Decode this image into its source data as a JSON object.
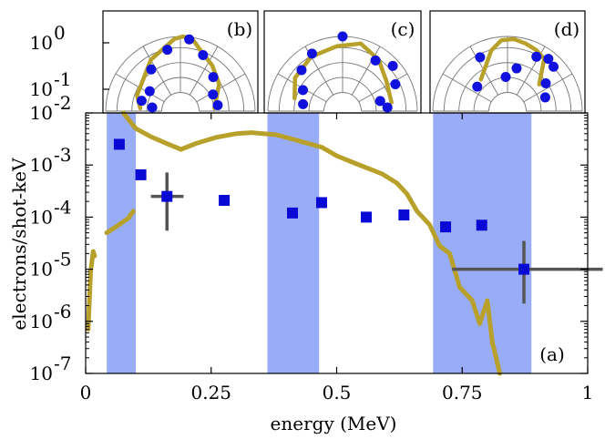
{
  "chart_data": {
    "type": "scatter",
    "xlabel": "energy (MeV)",
    "ylabel": "electrons/shot-keV",
    "xlim": [
      0,
      1
    ],
    "ylim_log10": [
      -7,
      -2
    ],
    "x_ticks": [
      {
        "value": 0,
        "label": "0"
      },
      {
        "value": 0.25,
        "label": "0.25"
      },
      {
        "value": 0.5,
        "label": "0.5"
      },
      {
        "value": 0.75,
        "label": "0.75"
      },
      {
        "value": 1,
        "label": "1"
      }
    ],
    "y_ticks": [
      {
        "exp": -2,
        "label": "10",
        "sup": "-2"
      },
      {
        "exp": -3,
        "label": "10",
        "sup": "-3"
      },
      {
        "exp": -4,
        "label": "10",
        "sup": "-4"
      },
      {
        "exp": -5,
        "label": "10",
        "sup": "-5"
      },
      {
        "exp": -6,
        "label": "10",
        "sup": "-6"
      },
      {
        "exp": -7,
        "label": "10",
        "sup": "-7"
      }
    ],
    "panel_label": "(a)",
    "shaded_bands": [
      [
        0.042,
        0.1
      ],
      [
        0.362,
        0.465
      ],
      [
        0.692,
        0.888
      ]
    ],
    "measured_points": [
      {
        "x": 0.067,
        "y": 0.0025
      },
      {
        "x": 0.11,
        "y": 0.00065
      },
      {
        "x": 0.162,
        "y": 0.00025
      },
      {
        "x": 0.276,
        "y": 0.00021
      },
      {
        "x": 0.412,
        "y": 0.00012
      },
      {
        "x": 0.47,
        "y": 0.00019
      },
      {
        "x": 0.559,
        "y": 0.0001
      },
      {
        "x": 0.634,
        "y": 0.00011
      },
      {
        "x": 0.717,
        "y": 6.5e-05
      },
      {
        "x": 0.789,
        "y": 7e-05
      },
      {
        "x": 0.873,
        "y": 1e-05
      }
    ],
    "error_bars": [
      {
        "x": 0.162,
        "y": 0.00025,
        "xerr": [
          0.13,
          0.195
        ],
        "yerr": [
          5.5e-05,
          0.00072
        ]
      },
      {
        "x": 0.873,
        "y": 1e-05,
        "xerr": [
          0.73,
          1.03
        ],
        "yerr": [
          2.2e-06,
          3.5e-05
        ]
      }
    ],
    "simulation_curves": [
      {
        "name": "simulation-low",
        "points": [
          [
            0.005,
            7e-07
          ],
          [
            0.01,
            9e-06
          ],
          [
            0.015,
            2.2e-05
          ],
          [
            0.018,
            1.8e-05
          ]
        ]
      },
      {
        "name": "simulation-rise",
        "points": [
          [
            0.042,
            5e-05
          ],
          [
            0.06,
            6.5e-05
          ],
          [
            0.085,
            9.5e-05
          ],
          [
            0.095,
            0.00013
          ]
        ]
      },
      {
        "name": "simulation-main",
        "points": [
          [
            0.075,
            0.01
          ],
          [
            0.1,
            0.005
          ],
          [
            0.13,
            0.0035
          ],
          [
            0.165,
            0.0025
          ],
          [
            0.19,
            0.002
          ],
          [
            0.22,
            0.0026
          ],
          [
            0.26,
            0.0034
          ],
          [
            0.3,
            0.004
          ],
          [
            0.33,
            0.0042
          ],
          [
            0.38,
            0.0038
          ],
          [
            0.42,
            0.003
          ],
          [
            0.47,
            0.0022
          ],
          [
            0.5,
            0.0015
          ],
          [
            0.54,
            0.00105
          ],
          [
            0.59,
            0.00068
          ],
          [
            0.62,
            0.00045
          ],
          [
            0.64,
            0.00028
          ],
          [
            0.66,
            0.00013
          ],
          [
            0.685,
            7.2e-05
          ],
          [
            0.705,
            2.8e-05
          ],
          [
            0.725,
            2e-05
          ],
          [
            0.745,
            4.5e-06
          ],
          [
            0.77,
            2.5e-06
          ],
          [
            0.785,
            9e-07
          ],
          [
            0.8,
            2.5e-06
          ],
          [
            0.81,
            4e-07
          ],
          [
            0.825,
            1e-07
          ]
        ]
      }
    ],
    "colors": {
      "band": "#99acf7",
      "points": "#0909d6",
      "errorbar": "#555555",
      "simulation": "#b8a12a",
      "polar_points": "#1111dd",
      "polar_grid": "#777777"
    },
    "insets": [
      {
        "label": "(b)",
        "y_ticks": [
          {
            "label": "10",
            "sup": "0"
          },
          {
            "label": "10",
            "sup": "-1"
          }
        ],
        "points_polar": [
          [
            176,
            0.05
          ],
          [
            165,
            0.55
          ],
          [
            147,
            0.4
          ],
          [
            125,
            1.0
          ],
          [
            102,
            1.5
          ],
          [
            83,
            1.9
          ],
          [
            68,
            1.4
          ],
          [
            46,
            0.85
          ],
          [
            27,
            0.4
          ],
          [
            9,
            0.45
          ]
        ],
        "lobe": [
          [
            176,
            0.55
          ],
          [
            160,
            0.8
          ],
          [
            120,
            1.35
          ],
          [
            95,
            1.9
          ],
          [
            88,
            2.0
          ],
          [
            80,
            1.9
          ],
          [
            70,
            1.5
          ],
          [
            55,
            1.2
          ],
          [
            35,
            0.85
          ],
          [
            5,
            0.3
          ]
        ]
      },
      {
        "label": "(c)",
        "y_ticks": [],
        "points_polar": [
          [
            170,
            0.55
          ],
          [
            152,
            0.75
          ],
          [
            135,
            1.3
          ],
          [
            118,
            1.6
          ],
          [
            90,
            2.0
          ],
          [
            57,
            1.4
          ],
          [
            42,
            1.7
          ],
          [
            27,
            1.35
          ],
          [
            15,
            0.5
          ],
          [
            4,
            0.75
          ]
        ],
        "lobe": [
          [
            165,
            0.95
          ],
          [
            145,
            1.3
          ],
          [
            120,
            1.5
          ],
          [
            95,
            1.6
          ],
          [
            75,
            1.8
          ],
          [
            55,
            1.5
          ],
          [
            35,
            1.1
          ],
          [
            10,
            0.95
          ]
        ]
      },
      {
        "label": "(d)",
        "y_ticks": [],
        "points_polar": [
          [
            141,
            0.5
          ],
          [
            117,
            1.4
          ],
          [
            93,
            0.3
          ],
          [
            78,
            0.7
          ],
          [
            62,
            1.45
          ],
          [
            52,
            1.65
          ],
          [
            44,
            1.55
          ],
          [
            36,
            0.85
          ],
          [
            20,
            0.55
          ]
        ],
        "lobe": [
          [
            130,
            0.6
          ],
          [
            105,
            1.5
          ],
          [
            95,
            1.85
          ],
          [
            85,
            1.9
          ],
          [
            75,
            1.8
          ],
          [
            65,
            1.7
          ],
          [
            55,
            1.55
          ],
          [
            40,
            0.6
          ]
        ]
      }
    ]
  }
}
